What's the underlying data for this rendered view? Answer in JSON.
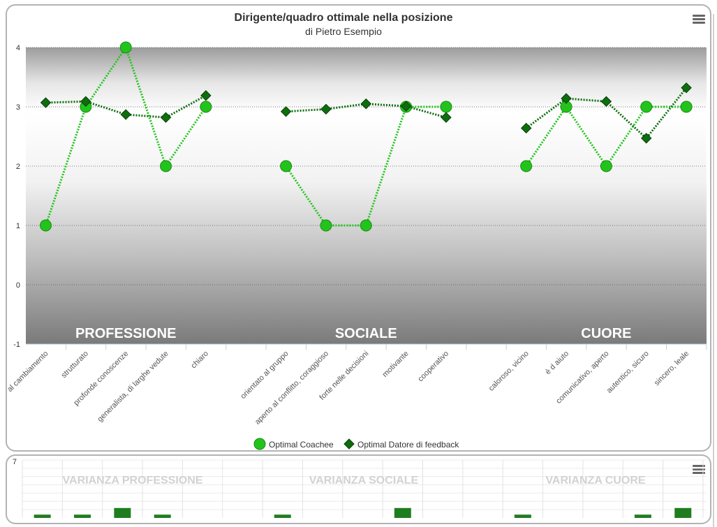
{
  "chart_data": {
    "type": "line",
    "title": "Dirigente/quadro ottimale nella posizione",
    "subtitle": "di Pietro Esempio",
    "ylim": [
      -1,
      4
    ],
    "yticks": [
      -1,
      0,
      1,
      2,
      3,
      4
    ],
    "grid": true,
    "legend_position": "bottom-center",
    "groups": [
      {
        "label": "PROFESSIONE",
        "start": 0,
        "end": 4
      },
      {
        "label": "SOCIALE",
        "start": 6,
        "end": 10
      },
      {
        "label": "CUORE",
        "start": 12,
        "end": 16
      }
    ],
    "categories": [
      "al cambiamento",
      "strutturato",
      "profonde conoscenze",
      "generalista, di larghe vedute",
      "chiaro",
      "",
      "orientato al gruppo",
      "aperto al conflitto, coraggioso",
      "forte nelle decisioni",
      "motivante",
      "cooperativo",
      "",
      "caloroso, vicino",
      "è d aiuto",
      "comunicativo, aperto",
      "autentico, sicuro",
      "sincero, leale"
    ],
    "series": [
      {
        "name": "Optimal Coachee",
        "color": "#22c41c",
        "marker": "circle",
        "values": [
          1,
          3,
          4,
          2,
          3,
          null,
          2,
          1,
          1,
          3,
          3,
          null,
          2,
          3,
          2,
          3,
          3
        ]
      },
      {
        "name": "Optimal Datore di feedback",
        "color": "#0e6e0e",
        "marker": "diamond",
        "values": [
          3.07,
          3.09,
          2.87,
          2.82,
          3.19,
          null,
          2.92,
          2.96,
          3.05,
          3.01,
          2.82,
          null,
          2.64,
          3.14,
          3.09,
          2.47,
          3.32
        ]
      }
    ]
  },
  "variance_chart": {
    "ytick_top": "7",
    "group_labels": [
      "VARIANZA PROFESSIONE",
      "VARIANZA SOCIALE",
      "VARIANZA CUORE"
    ],
    "values": [
      0.1,
      0.1,
      0.3,
      0.1,
      0,
      0,
      0.1,
      0,
      0,
      0.3,
      0,
      0,
      0.1,
      0,
      0,
      0.1,
      0.3
    ]
  }
}
